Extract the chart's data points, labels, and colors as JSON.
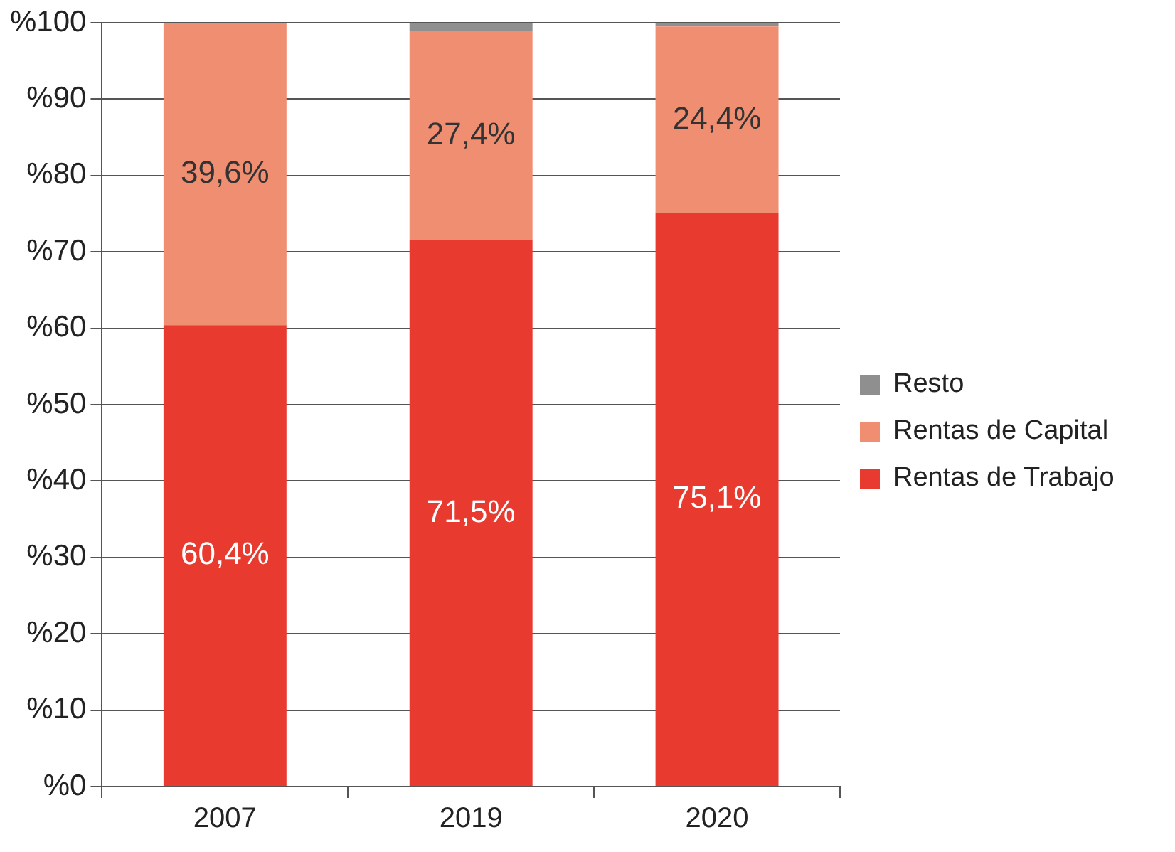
{
  "chart_data": {
    "type": "bar",
    "stacked": true,
    "categories": [
      "2007",
      "2019",
      "2020"
    ],
    "series": [
      {
        "name": "Rentas de Trabajo",
        "color": "#e93a30",
        "values": [
          60.4,
          71.5,
          75.1
        ],
        "value_labels": [
          "60,4%",
          "71,5%",
          "75,1%"
        ]
      },
      {
        "name": "Rentas de Capital",
        "color": "#f08e72",
        "values": [
          39.6,
          27.4,
          24.4
        ],
        "value_labels": [
          "39,6%",
          "27,4%",
          "24,4%"
        ]
      },
      {
        "name": "Resto",
        "color": "#8f8f8f",
        "values": [
          0,
          1.1,
          0.5
        ]
      }
    ],
    "ylim": [
      0,
      100
    ],
    "yticks": [
      {
        "value": 0,
        "label": "%0"
      },
      {
        "value": 10,
        "label": "%10"
      },
      {
        "value": 20,
        "label": "%20"
      },
      {
        "value": 30,
        "label": "%30"
      },
      {
        "value": 40,
        "label": "%40"
      },
      {
        "value": 50,
        "label": "%50"
      },
      {
        "value": 60,
        "label": "%60"
      },
      {
        "value": 70,
        "label": "%70"
      },
      {
        "value": 80,
        "label": "%80"
      },
      {
        "value": 90,
        "label": "%90"
      },
      {
        "value": 100,
        "label": "%100"
      }
    ],
    "grid": "y",
    "legend": "right"
  }
}
